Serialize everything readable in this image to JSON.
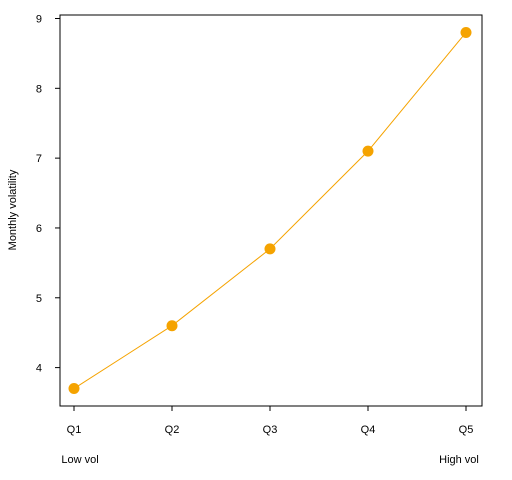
{
  "chart_data": {
    "type": "line",
    "title": "",
    "xlabel": "",
    "ylabel": "Monthly volatility",
    "categories": [
      "Q1",
      "Q2",
      "Q3",
      "Q4",
      "Q5"
    ],
    "series": [
      {
        "values": [
          3.7,
          4.6,
          5.7,
          7.1,
          8.8
        ]
      }
    ],
    "ylim": [
      3.45,
      9.05
    ],
    "yticks": [
      4,
      5,
      6,
      7,
      8,
      9
    ],
    "grid": false,
    "color": "#f5a300",
    "annotations": {
      "left": "Low vol",
      "right": "High vol"
    }
  }
}
